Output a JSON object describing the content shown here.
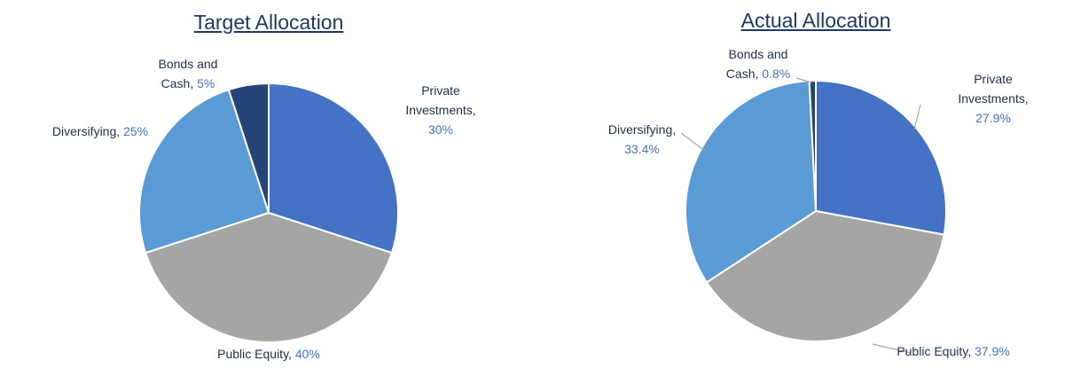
{
  "chart_data": [
    {
      "type": "pie",
      "title": "Target Allocation",
      "categories": [
        "Private Investments,",
        "Public Equity,",
        "Diversifying,",
        "Bonds and Cash,"
      ],
      "values": [
        30,
        40,
        25,
        5
      ],
      "value_labels": [
        "30%",
        "40%",
        "25%",
        "5%"
      ],
      "colors": [
        "#4472c4",
        "#a5a5a5",
        "#5b9bd5",
        "#264478"
      ]
    },
    {
      "type": "pie",
      "title": "Actual Allocation",
      "categories": [
        "Private Investments,",
        "Public Equity,",
        "Diversifying,",
        "Bonds and Cash,"
      ],
      "values": [
        27.9,
        37.9,
        33.4,
        0.8
      ],
      "value_labels": [
        "27.9%",
        "37.9%",
        "33.4%",
        "0.8%"
      ],
      "colors": [
        "#4472c4",
        "#a5a5a5",
        "#5b9bd5",
        "#264478"
      ]
    }
  ]
}
